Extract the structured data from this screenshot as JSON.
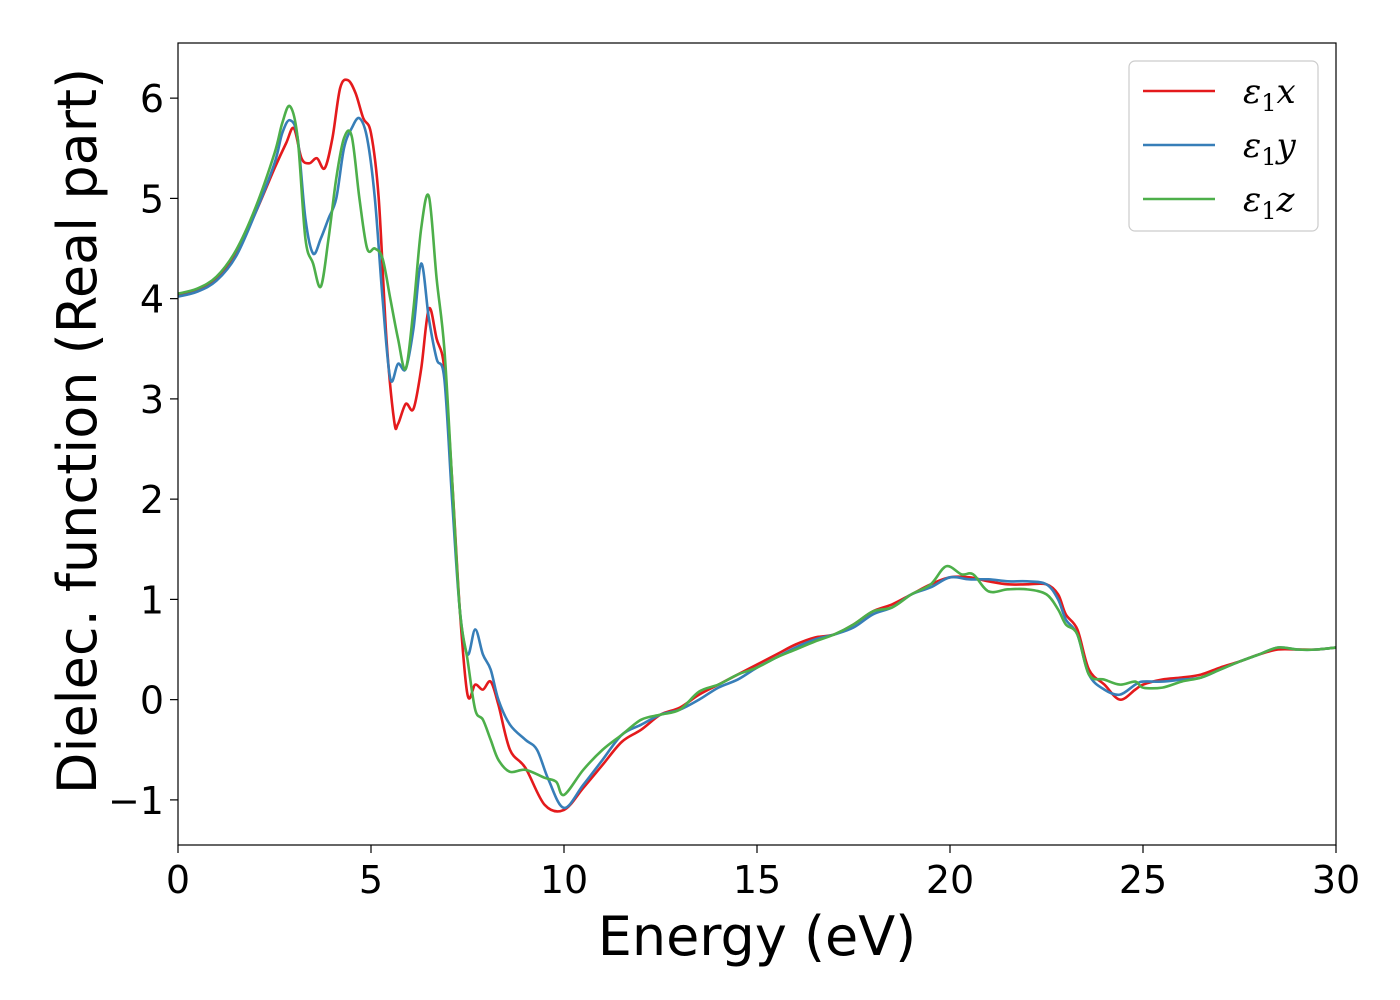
{
  "chart_data": {
    "type": "line",
    "xlabel": "Energy (eV)",
    "ylabel": "Dielec. function (Real part)",
    "xlim": [
      0,
      30
    ],
    "ylim": [
      -1.45,
      6.55
    ],
    "xticks": [
      0,
      5,
      10,
      15,
      20,
      25,
      30
    ],
    "yticks": [
      -1,
      0,
      1,
      2,
      3,
      4,
      5,
      6
    ],
    "xtick_labels": [
      "0",
      "5",
      "10",
      "15",
      "20",
      "25",
      "30"
    ],
    "ytick_labels": [
      "−1",
      "0",
      "1",
      "2",
      "3",
      "4",
      "5",
      "6"
    ],
    "grid": false,
    "legend_position": "top-right",
    "series": [
      {
        "name": "ε₁x",
        "name_main": "ε",
        "name_sub": "1",
        "name_tail": "x",
        "color": "#e41a1c",
        "x": [
          0,
          0.5,
          1.0,
          1.5,
          2.0,
          2.5,
          2.8,
          3.0,
          3.2,
          3.4,
          3.6,
          3.8,
          4.0,
          4.2,
          4.4,
          4.6,
          4.8,
          5.0,
          5.2,
          5.4,
          5.6,
          5.7,
          5.9,
          6.1,
          6.3,
          6.5,
          6.7,
          6.9,
          7.1,
          7.3,
          7.5,
          7.7,
          7.9,
          8.1,
          8.3,
          8.6,
          9.0,
          9.5,
          10.0,
          10.5,
          11.0,
          11.5,
          12.0,
          12.5,
          13.0,
          13.5,
          14.0,
          14.5,
          15.0,
          15.5,
          16.0,
          16.5,
          17.0,
          17.5,
          18.0,
          18.5,
          19.0,
          19.5,
          20.0,
          20.5,
          21.0,
          21.5,
          22.0,
          22.5,
          22.8,
          23.0,
          23.3,
          23.6,
          24.0,
          24.4,
          24.8,
          25.0,
          25.5,
          26.0,
          26.5,
          27.0,
          27.5,
          28.0,
          28.5,
          29.0,
          29.5,
          30.0
        ],
        "y": [
          4.03,
          4.08,
          4.2,
          4.45,
          4.85,
          5.3,
          5.55,
          5.7,
          5.4,
          5.35,
          5.4,
          5.3,
          5.6,
          6.1,
          6.18,
          6.05,
          5.8,
          5.65,
          5.0,
          3.6,
          2.78,
          2.75,
          2.95,
          2.9,
          3.3,
          3.9,
          3.6,
          3.3,
          2.2,
          0.9,
          0.05,
          0.15,
          0.1,
          0.18,
          -0.05,
          -0.5,
          -0.68,
          -1.05,
          -1.1,
          -0.88,
          -0.65,
          -0.42,
          -0.3,
          -0.15,
          -0.08,
          0.05,
          0.15,
          0.25,
          0.35,
          0.45,
          0.55,
          0.62,
          0.65,
          0.75,
          0.88,
          0.95,
          1.05,
          1.15,
          1.22,
          1.22,
          1.18,
          1.15,
          1.15,
          1.15,
          1.05,
          0.85,
          0.7,
          0.3,
          0.15,
          0.0,
          0.1,
          0.15,
          0.2,
          0.22,
          0.25,
          0.32,
          0.38,
          0.45,
          0.5,
          0.5,
          0.5,
          0.52
        ]
      },
      {
        "name": "ε₁y",
        "name_main": "ε",
        "name_sub": "1",
        "name_tail": "y",
        "color": "#377eb8",
        "x": [
          0,
          0.5,
          1.0,
          1.5,
          2.0,
          2.5,
          2.7,
          2.9,
          3.1,
          3.3,
          3.5,
          3.7,
          3.9,
          4.1,
          4.3,
          4.5,
          4.7,
          4.9,
          5.1,
          5.3,
          5.5,
          5.7,
          5.9,
          6.1,
          6.3,
          6.5,
          6.7,
          6.9,
          7.1,
          7.3,
          7.5,
          7.7,
          7.9,
          8.1,
          8.3,
          8.6,
          9.0,
          9.3,
          9.6,
          10.0,
          10.5,
          11.0,
          11.5,
          12.0,
          12.5,
          13.0,
          13.5,
          14.0,
          14.5,
          15.0,
          15.5,
          16.0,
          16.5,
          17.0,
          17.5,
          18.0,
          18.5,
          19.0,
          19.5,
          20.0,
          20.5,
          21.0,
          21.5,
          22.0,
          22.5,
          22.8,
          23.0,
          23.3,
          23.6,
          24.0,
          24.4,
          24.8,
          25.0,
          25.5,
          26.0,
          26.5,
          27.0,
          27.5,
          28.0,
          28.5,
          29.0,
          29.5,
          30.0
        ],
        "y": [
          4.02,
          4.07,
          4.18,
          4.42,
          4.85,
          5.35,
          5.65,
          5.78,
          5.6,
          4.8,
          4.45,
          4.6,
          4.8,
          5.0,
          5.5,
          5.7,
          5.8,
          5.6,
          5.0,
          4.0,
          3.2,
          3.35,
          3.3,
          3.7,
          4.35,
          3.8,
          3.4,
          3.2,
          2.0,
          0.9,
          0.45,
          0.7,
          0.45,
          0.3,
          0.0,
          -0.25,
          -0.4,
          -0.5,
          -0.8,
          -1.08,
          -0.85,
          -0.6,
          -0.35,
          -0.25,
          -0.15,
          -0.1,
          0.0,
          0.12,
          0.2,
          0.32,
          0.42,
          0.52,
          0.6,
          0.65,
          0.72,
          0.85,
          0.92,
          1.05,
          1.12,
          1.22,
          1.2,
          1.2,
          1.18,
          1.18,
          1.15,
          1.0,
          0.8,
          0.65,
          0.25,
          0.1,
          0.05,
          0.15,
          0.18,
          0.18,
          0.2,
          0.22,
          0.3,
          0.38,
          0.45,
          0.52,
          0.5,
          0.5,
          0.52
        ]
      },
      {
        "name": "ε₁z",
        "name_main": "ε",
        "name_sub": "1",
        "name_tail": "z",
        "color": "#4daf4a",
        "x": [
          0,
          0.5,
          1.0,
          1.5,
          2.0,
          2.5,
          2.7,
          2.9,
          3.1,
          3.3,
          3.5,
          3.7,
          3.9,
          4.1,
          4.3,
          4.5,
          4.7,
          4.9,
          5.1,
          5.3,
          5.5,
          5.7,
          5.9,
          6.1,
          6.3,
          6.5,
          6.7,
          6.9,
          7.1,
          7.3,
          7.5,
          7.7,
          7.9,
          8.1,
          8.3,
          8.6,
          9.0,
          9.5,
          9.8,
          10.0,
          10.5,
          11.0,
          11.5,
          12.0,
          12.5,
          13.0,
          13.5,
          14.0,
          14.5,
          15.0,
          15.5,
          16.0,
          16.5,
          17.0,
          17.5,
          18.0,
          18.5,
          19.0,
          19.5,
          19.9,
          20.3,
          20.6,
          21.0,
          21.5,
          22.0,
          22.5,
          22.8,
          23.0,
          23.3,
          23.6,
          24.0,
          24.4,
          24.8,
          25.0,
          25.5,
          26.0,
          26.5,
          27.0,
          27.5,
          28.0,
          28.5,
          29.0,
          29.5,
          30.0
        ],
        "y": [
          4.05,
          4.1,
          4.22,
          4.48,
          4.9,
          5.45,
          5.75,
          5.92,
          5.6,
          4.6,
          4.35,
          4.12,
          4.6,
          5.2,
          5.6,
          5.62,
          5.0,
          4.5,
          4.5,
          4.4,
          4.0,
          3.6,
          3.3,
          3.9,
          4.7,
          5.02,
          4.2,
          3.5,
          2.2,
          0.9,
          0.4,
          -0.1,
          -0.2,
          -0.4,
          -0.6,
          -0.72,
          -0.7,
          -0.78,
          -0.82,
          -0.95,
          -0.7,
          -0.5,
          -0.35,
          -0.2,
          -0.15,
          -0.1,
          0.08,
          0.15,
          0.25,
          0.32,
          0.42,
          0.5,
          0.58,
          0.65,
          0.75,
          0.88,
          0.92,
          1.05,
          1.15,
          1.33,
          1.25,
          1.25,
          1.08,
          1.1,
          1.1,
          1.05,
          0.9,
          0.75,
          0.65,
          0.25,
          0.2,
          0.15,
          0.18,
          0.12,
          0.12,
          0.18,
          0.22,
          0.3,
          0.38,
          0.45,
          0.52,
          0.5,
          0.5,
          0.52
        ]
      }
    ]
  }
}
